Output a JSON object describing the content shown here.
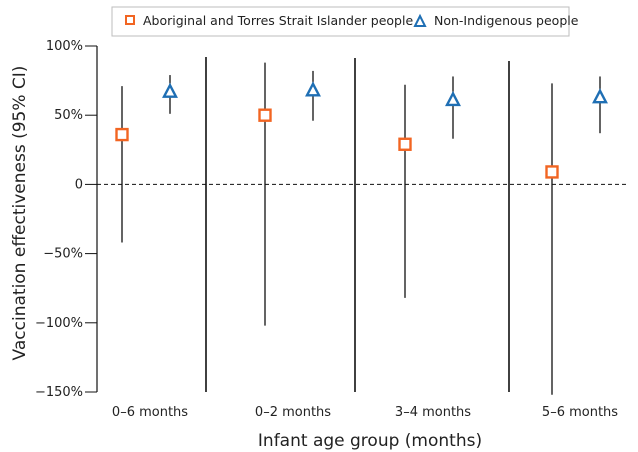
{
  "chart_data": {
    "type": "scatter",
    "xlabel": "Infant age group (months)",
    "ylabel": "Vaccination effectiveness (95% CI)",
    "ylim": [
      -150,
      100
    ],
    "y_ticks": [
      100,
      50,
      0,
      -50,
      -100,
      -150
    ],
    "y_tick_labels": [
      "100%",
      "50%",
      "0",
      "−50%",
      "−100%",
      "−150%"
    ],
    "categories": [
      "0–6 months",
      "0–2 months",
      "3–4 months",
      "5–6 months"
    ],
    "reference_line": 0,
    "legend_position": "top",
    "series": [
      {
        "name": "Aboriginal and Torres Strait Islander people",
        "marker": "square",
        "color": "#f26522",
        "points": [
          {
            "category": "0–6 months",
            "estimate": 36,
            "lower": -42,
            "upper": 71
          },
          {
            "category": "0–2 months",
            "estimate": 50,
            "lower": -102,
            "upper": 88
          },
          {
            "category": "3–4 months",
            "estimate": 29,
            "lower": -82,
            "upper": 72
          },
          {
            "category": "5–6 months",
            "estimate": 9,
            "lower": -152,
            "upper": 73
          }
        ]
      },
      {
        "name": "Non-Indigenous people",
        "marker": "triangle",
        "color": "#1f6fb4",
        "points": [
          {
            "category": "0–6 months",
            "estimate": 67,
            "lower": 51,
            "upper": 79
          },
          {
            "category": "0–2 months",
            "estimate": 68,
            "lower": 46,
            "upper": 82
          },
          {
            "category": "3–4 months",
            "estimate": 61,
            "lower": 33,
            "upper": 78
          },
          {
            "category": "5–6 months",
            "estimate": 63,
            "lower": 37,
            "upper": 78
          }
        ]
      }
    ]
  }
}
